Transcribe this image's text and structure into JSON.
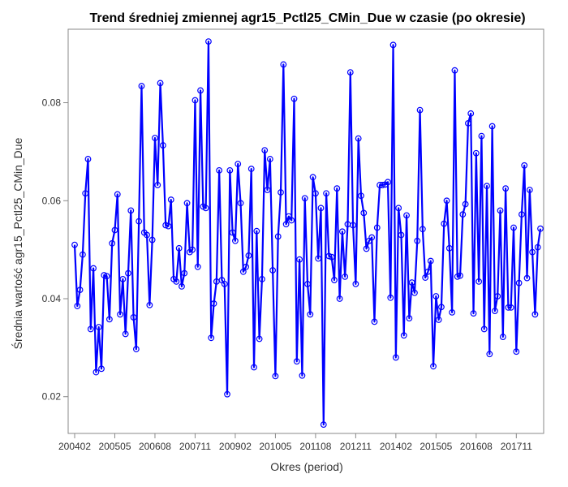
{
  "chart_data": {
    "type": "line",
    "title": "Trend średniej zmiennej agr15_Pctl25_CMin_Due w czasie (po okresie)",
    "xlabel": "Okres (period)",
    "ylabel": "Średnia wartość agr15_Pctl25_CMin_Due",
    "x_tick_labels": [
      "200402",
      "200505",
      "200608",
      "200711",
      "200902",
      "201005",
      "201108",
      "201211",
      "201402",
      "201505",
      "201608",
      "201711"
    ],
    "ylim": [
      0.0125,
      0.095
    ],
    "y_ticks": [
      0.02,
      0.04,
      0.06,
      0.08
    ],
    "y_tick_labels": [
      "0.02",
      "0.04",
      "0.06",
      "0.08"
    ],
    "grid": false,
    "legend": "none",
    "series": [
      {
        "color": "#0000ff",
        "x_start": "200402",
        "values": [
          0.051,
          0.0385,
          0.0418,
          0.049,
          0.0615,
          0.0685,
          0.0338,
          0.0462,
          0.025,
          0.0342,
          0.0257,
          0.0448,
          0.0446,
          0.0358,
          0.0513,
          0.054,
          0.0613,
          0.0368,
          0.044,
          0.0328,
          0.0452,
          0.058,
          0.0362,
          0.0297,
          0.0558,
          0.0834,
          0.0535,
          0.053,
          0.0387,
          0.052,
          0.0728,
          0.0632,
          0.084,
          0.0713,
          0.055,
          0.0548,
          0.0602,
          0.044,
          0.0435,
          0.0503,
          0.0425,
          0.0452,
          0.0595,
          0.0495,
          0.05,
          0.0805,
          0.0465,
          0.0825,
          0.0588,
          0.0585,
          0.0925,
          0.032,
          0.039,
          0.0435,
          0.0662,
          0.0438,
          0.043,
          0.0205,
          0.0662,
          0.0535,
          0.0518,
          0.0675,
          0.0595,
          0.0455,
          0.0465,
          0.0488,
          0.0665,
          0.026,
          0.0538,
          0.0318,
          0.044,
          0.0703,
          0.0622,
          0.0685,
          0.0458,
          0.0242,
          0.0527,
          0.0617,
          0.0878,
          0.0552,
          0.0568,
          0.056,
          0.0808,
          0.0272,
          0.048,
          0.0243,
          0.0605,
          0.043,
          0.0368,
          0.0648,
          0.0615,
          0.0482,
          0.0585,
          0.0143,
          0.0615,
          0.0487,
          0.0485,
          0.0438,
          0.0625,
          0.04,
          0.0537,
          0.0445,
          0.0552,
          0.0862,
          0.055,
          0.043,
          0.0727,
          0.061,
          0.0575,
          0.0502,
          0.0518,
          0.0525,
          0.0353,
          0.0545,
          0.0632,
          0.0632,
          0.0633,
          0.0638,
          0.0402,
          0.0918,
          0.028,
          0.0585,
          0.053,
          0.0325,
          0.057,
          0.036,
          0.0433,
          0.0412,
          0.0518,
          0.0785,
          0.0542,
          0.0443,
          0.0455,
          0.0477,
          0.0262,
          0.0405,
          0.0357,
          0.0383,
          0.0553,
          0.06,
          0.0503,
          0.0372,
          0.0866,
          0.0445,
          0.0447,
          0.0572,
          0.0593,
          0.0758,
          0.0778,
          0.037,
          0.0697,
          0.0435,
          0.0732,
          0.0338,
          0.063,
          0.0287,
          0.0752,
          0.0375,
          0.0405,
          0.058,
          0.0322,
          0.0625,
          0.0382,
          0.0382,
          0.0545,
          0.0292,
          0.0432,
          0.0572,
          0.0672,
          0.0442,
          0.0622,
          0.0495,
          0.0368,
          0.0505,
          0.0543
        ]
      }
    ]
  }
}
